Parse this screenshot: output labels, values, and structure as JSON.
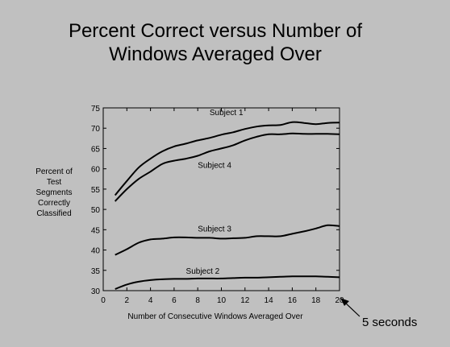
{
  "chart_data": {
    "type": "line",
    "title_line1": "Percent Correct versus Number of",
    "title_line2": "Windows Averaged Over",
    "xlabel": "Number of Consecutive Windows Averaged Over",
    "ylabel_lines": [
      "Percent of",
      "Test",
      "Segments",
      "Correctly",
      "Classified"
    ],
    "xlim": [
      0,
      20
    ],
    "ylim": [
      30,
      75
    ],
    "xticks": [
      0,
      2,
      4,
      6,
      8,
      10,
      12,
      14,
      16,
      18,
      20
    ],
    "yticks": [
      30,
      35,
      40,
      45,
      50,
      55,
      60,
      65,
      70,
      75
    ],
    "grid": false,
    "series": [
      {
        "name": "Subject 1",
        "x": [
          1,
          2,
          3,
          4,
          5,
          6,
          7,
          8,
          9,
          10,
          11,
          12,
          13,
          14,
          15,
          16,
          17,
          18,
          19,
          20
        ],
        "y": [
          53.5,
          57.0,
          60.3,
          62.5,
          64.3,
          65.5,
          66.2,
          67.0,
          67.6,
          68.4,
          69.0,
          69.8,
          70.4,
          70.7,
          70.8,
          71.5,
          71.3,
          71.0,
          71.3,
          71.4
        ]
      },
      {
        "name": "Subject 4",
        "x": [
          1,
          2,
          3,
          4,
          5,
          6,
          7,
          8,
          9,
          10,
          11,
          12,
          13,
          14,
          15,
          16,
          17,
          18,
          19,
          20
        ],
        "y": [
          52.0,
          55.0,
          57.5,
          59.3,
          61.2,
          62.0,
          62.5,
          63.2,
          64.3,
          65.0,
          65.8,
          67.0,
          67.9,
          68.5,
          68.5,
          68.7,
          68.6,
          68.6,
          68.6,
          68.5
        ]
      },
      {
        "name": "Subject 3",
        "x": [
          1,
          2,
          3,
          4,
          5,
          6,
          7,
          8,
          9,
          10,
          11,
          12,
          13,
          14,
          15,
          16,
          17,
          18,
          19,
          20
        ],
        "y": [
          38.8,
          40.2,
          41.8,
          42.6,
          42.8,
          43.1,
          43.1,
          43.0,
          43.0,
          42.8,
          42.9,
          43.0,
          43.4,
          43.4,
          43.4,
          44.0,
          44.6,
          45.3,
          46.1,
          45.9
        ]
      },
      {
        "name": "Subject 2",
        "x": [
          1,
          2,
          3,
          4,
          5,
          6,
          7,
          8,
          9,
          10,
          11,
          12,
          13,
          14,
          15,
          16,
          17,
          18,
          19,
          20
        ],
        "y": [
          30.4,
          31.5,
          32.2,
          32.6,
          32.8,
          32.9,
          32.9,
          33.0,
          33.0,
          33.0,
          33.1,
          33.2,
          33.2,
          33.3,
          33.4,
          33.5,
          33.5,
          33.5,
          33.4,
          33.3
        ]
      }
    ],
    "annotation": {
      "text": "5 seconds",
      "points_to_x": 20
    }
  },
  "colors": {
    "background": "#c0c0c0",
    "ink": "#000000"
  }
}
